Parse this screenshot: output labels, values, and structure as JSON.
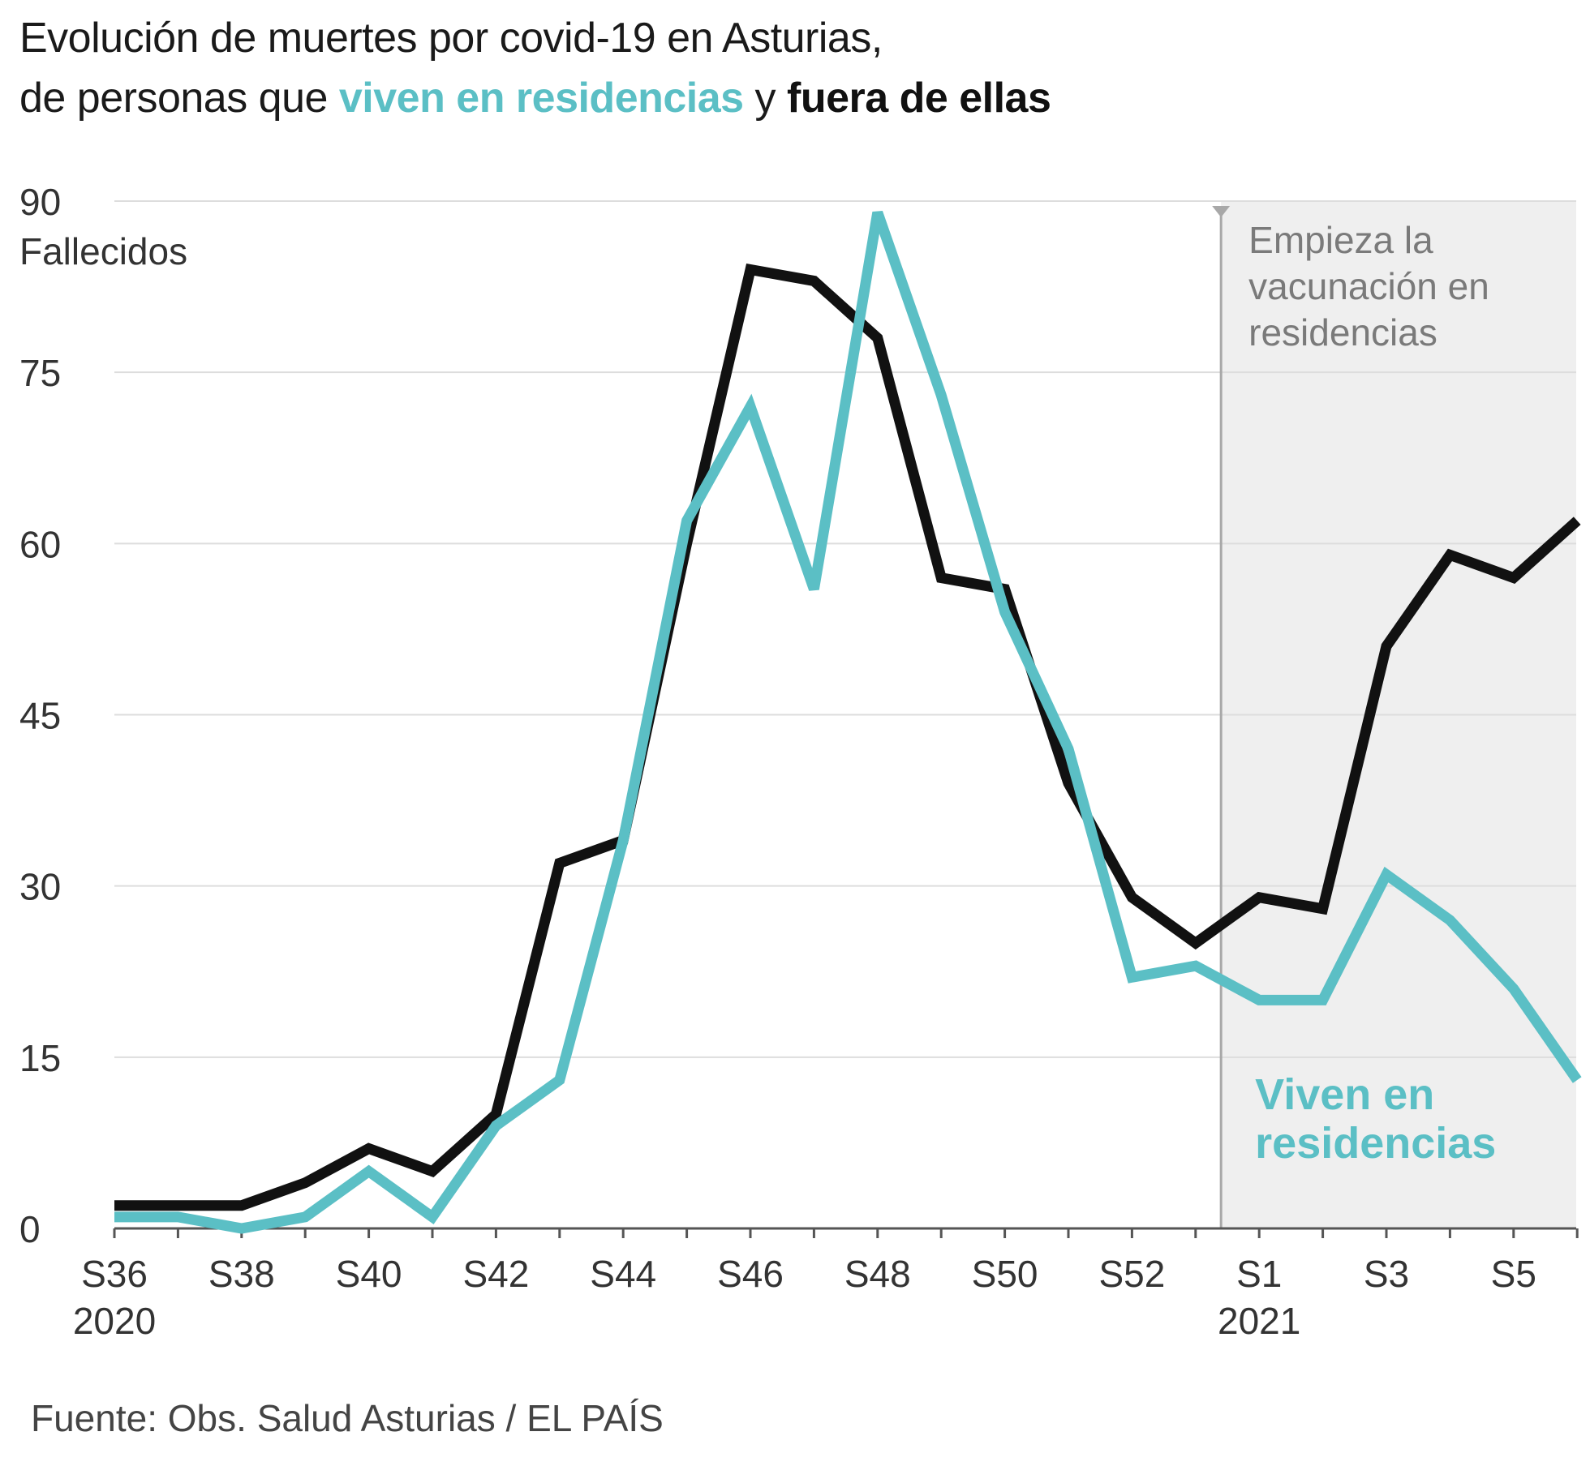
{
  "title": {
    "line1": "Evolución de muertes por covid-19 en Asturias,",
    "line2_prefix": "de personas que ",
    "line2_highlight_residences": "viven en residencias",
    "line2_middle": " y ",
    "line2_highlight_outside": "fuera de ellas"
  },
  "colors": {
    "residences": "#5bbfc5",
    "outside": "#111111",
    "grid": "#dddddd",
    "shade": "#efefef",
    "marker": "#a8a8a8",
    "tick_text": "#333333",
    "annotation_text": "#7a7a7a"
  },
  "chart_data": {
    "type": "line",
    "x_categories": [
      "S36",
      "S37",
      "S38",
      "S39",
      "S40",
      "S41",
      "S42",
      "S43",
      "S44",
      "S45",
      "S46",
      "S47",
      "S48",
      "S49",
      "S50",
      "S51",
      "S52",
      "S53",
      "S1",
      "S2",
      "S3",
      "S4",
      "S5",
      "S6"
    ],
    "x_tick_labels": [
      "S36",
      "S38",
      "S40",
      "S42",
      "S44",
      "S46",
      "S48",
      "S50",
      "S52",
      "S1",
      "S3",
      "S5"
    ],
    "year_labels": [
      {
        "at": "S36",
        "text": "2020"
      },
      {
        "at": "S1",
        "text": "2021"
      }
    ],
    "y_ticks": [
      0,
      15,
      30,
      45,
      60,
      75,
      90
    ],
    "ylim": [
      0,
      90
    ],
    "ylabel": "Fallecidos",
    "grid": true,
    "series": [
      {
        "key": "outside",
        "name": "fuera de ellas",
        "color": "#111111",
        "values": [
          2,
          2,
          2,
          4,
          7,
          5,
          10,
          32,
          34,
          60,
          84,
          83,
          78,
          57,
          56,
          39,
          29,
          25,
          29,
          28,
          51,
          59,
          57,
          62
        ]
      },
      {
        "key": "residences",
        "name": "Viven en residencias",
        "color": "#5bbfc5",
        "values": [
          1,
          1,
          0,
          1,
          5,
          1,
          9,
          13,
          34,
          62,
          72,
          56,
          89,
          73,
          54,
          42,
          22,
          23,
          20,
          20,
          31,
          27,
          21,
          13
        ]
      }
    ],
    "shaded_region": {
      "from_week": "S53",
      "offset": 0.4,
      "to_week": "S6"
    },
    "annotation": {
      "lines": [
        "Empieza la",
        "vacunación en",
        "residencias"
      ]
    },
    "series_label": {
      "lines": [
        "Viven en",
        "residencias"
      ]
    }
  },
  "source": "Fuente: Obs. Salud Asturias / EL PAÍS"
}
